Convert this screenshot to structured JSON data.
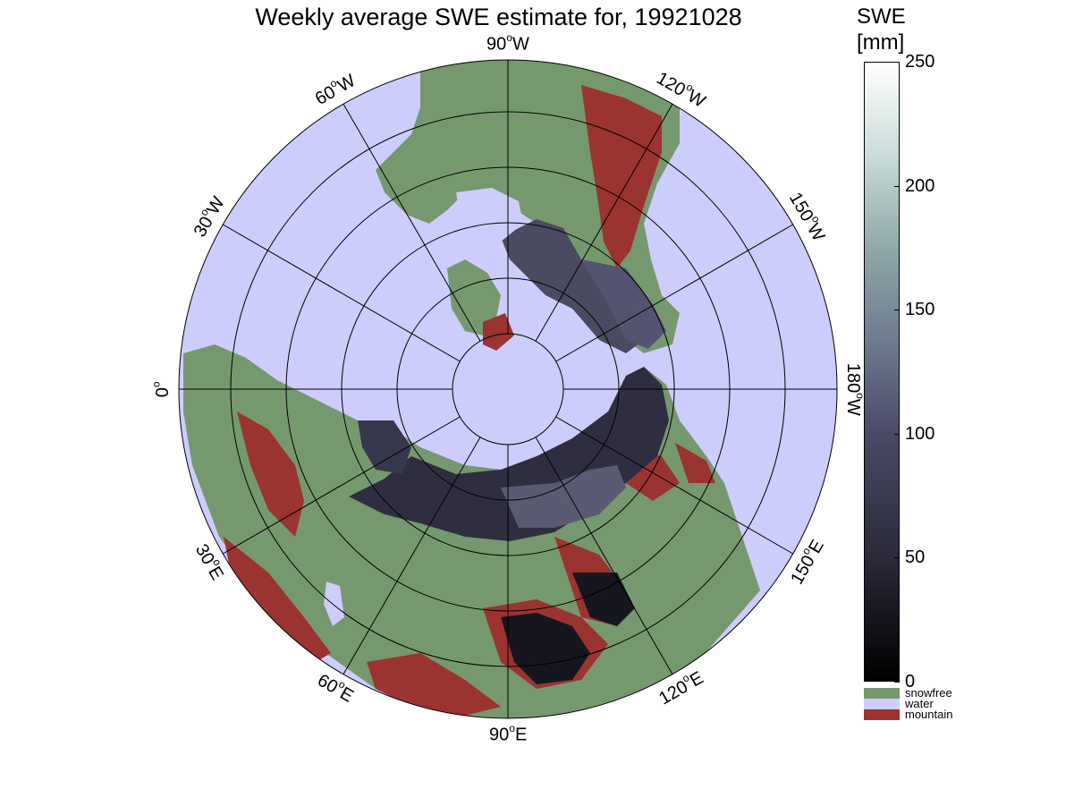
{
  "title": "Weekly average SWE estimate for, 19921028",
  "longitude_labels": [
    {
      "deg": "90",
      "suffix": "W",
      "angle": 90
    },
    {
      "deg": "120",
      "suffix": "W",
      "angle": 120
    },
    {
      "deg": "150",
      "suffix": "W",
      "angle": 150
    },
    {
      "deg": "180",
      "suffix": "W",
      "angle": 180
    },
    {
      "deg": "150",
      "suffix": "E",
      "angle": 210
    },
    {
      "deg": "120",
      "suffix": "E",
      "angle": 240
    },
    {
      "deg": "90",
      "suffix": "E",
      "angle": 270
    },
    {
      "deg": "60",
      "suffix": "E",
      "angle": 300
    },
    {
      "deg": "30",
      "suffix": "E",
      "angle": 330
    },
    {
      "deg": "0",
      "suffix": "",
      "angle": 0
    },
    {
      "deg": "30",
      "suffix": "W",
      "angle": 30
    },
    {
      "deg": "60",
      "suffix": "W",
      "angle": 60
    }
  ],
  "colorbar": {
    "title_line1": "SWE",
    "title_line2": "[mm]",
    "min": 0,
    "max": 250,
    "ticks": [
      "0",
      "50",
      "100",
      "150",
      "200",
      "250"
    ]
  },
  "categories": [
    {
      "label": "snowfree",
      "color": "#76986f"
    },
    {
      "label": "water",
      "color": "#cdcdfd"
    },
    {
      "label": "mountain",
      "color": "#9b3330"
    }
  ],
  "colors": {
    "water": "#cdcdfd",
    "land": "#76986f",
    "mountain": "#9b3330",
    "snow_dark": "#2a2a3a",
    "snow_mid": "#56566e",
    "grid": "#000000"
  }
}
